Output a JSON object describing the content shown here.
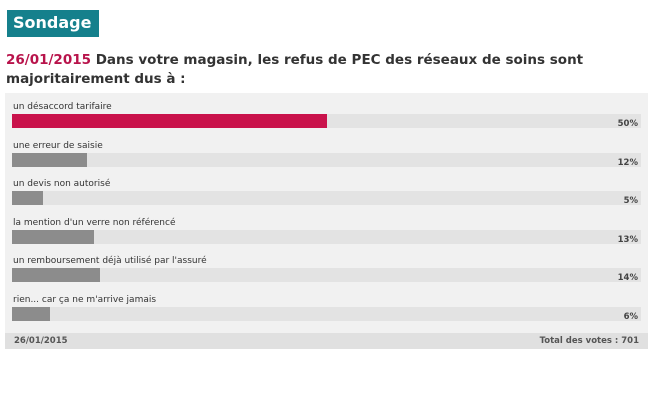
{
  "header": {
    "badge": "Sondage"
  },
  "question": {
    "date": "26/01/2015",
    "text": " Dans votre magasin, les refus de PEC des réseaux de soins sont majoritairement dus à :"
  },
  "options": [
    {
      "label": "un désaccord tarifaire",
      "percent_label": "50%",
      "percent": 50,
      "leader": true
    },
    {
      "label": "une erreur de saisie",
      "percent_label": "12%",
      "percent": 12,
      "leader": false
    },
    {
      "label": "un devis non autorisé",
      "percent_label": "5%",
      "percent": 5,
      "leader": false
    },
    {
      "label": "la mention d'un verre non référencé",
      "percent_label": "13%",
      "percent": 13,
      "leader": false
    },
    {
      "label": "un remboursement déjà utilisé par l'assuré",
      "percent_label": "14%",
      "percent": 14,
      "leader": false
    },
    {
      "label": "rien... car ça ne m'arrive jamais",
      "percent_label": "6%",
      "percent": 6,
      "leader": false
    }
  ],
  "footer": {
    "date": "26/01/2015",
    "total_votes": "Total des votes : 701"
  },
  "colors": {
    "badge": "#15808c",
    "leader_bar": "#c9124b",
    "other_bar": "#8c8c8c",
    "date_accent": "#b8134b"
  }
}
